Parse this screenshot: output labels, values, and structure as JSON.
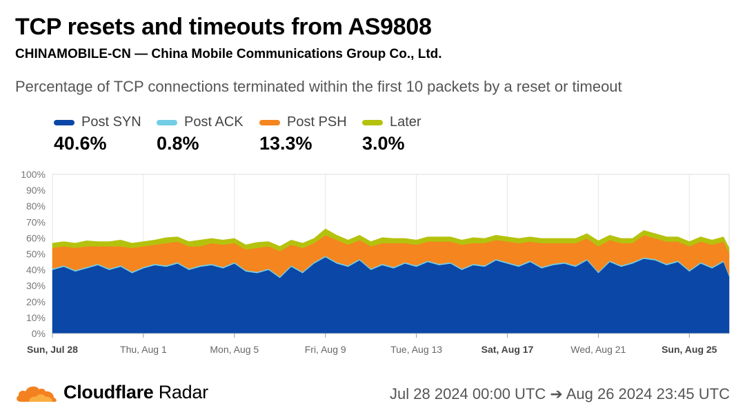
{
  "header": {
    "title": "TCP resets and timeouts from AS9808",
    "subtitle": "CHINAMOBILE-CN — China Mobile Communications Group Co., Ltd.",
    "description": "Percentage of TCP connections terminated within the first 10 packets by a reset or timeout"
  },
  "legend": [
    {
      "name": "Post SYN",
      "value": "40.6%",
      "color": "#0a47a6"
    },
    {
      "name": "Post ACK",
      "value": "0.8%",
      "color": "#73cde5"
    },
    {
      "name": "Post PSH",
      "value": "13.3%",
      "color": "#f4851f"
    },
    {
      "name": "Later",
      "value": "3.0%",
      "color": "#b5c20d"
    }
  ],
  "footer": {
    "brand_bold": "Cloudflare",
    "brand_rest": " Radar",
    "range": "Jul 28 2024 00:00 UTC ➔ Aug 26 2024 23:45 UTC"
  },
  "chart_data": {
    "type": "area",
    "stacked": true,
    "x_start": "2024-07-28",
    "x_end": "2024-08-26",
    "ylim": [
      0,
      100
    ],
    "y_ticks": [
      "0%",
      "10%",
      "20%",
      "30%",
      "40%",
      "50%",
      "60%",
      "70%",
      "80%",
      "90%",
      "100%"
    ],
    "x_ticks": [
      {
        "label": "Sun, Jul 28",
        "day": 0,
        "bold": true
      },
      {
        "label": "Thu, Aug 1",
        "day": 4,
        "bold": false
      },
      {
        "label": "Mon, Aug 5",
        "day": 8,
        "bold": false
      },
      {
        "label": "Fri, Aug 9",
        "day": 12,
        "bold": false
      },
      {
        "label": "Tue, Aug 13",
        "day": 16,
        "bold": false
      },
      {
        "label": "Sat, Aug 17",
        "day": 20,
        "bold": true
      },
      {
        "label": "Wed, Aug 21",
        "day": 24,
        "bold": false
      },
      {
        "label": "Sun, Aug 25",
        "day": 28,
        "bold": true
      }
    ],
    "x_days": [
      0,
      0.5,
      1,
      1.5,
      2,
      2.5,
      3,
      3.5,
      4,
      4.5,
      5,
      5.5,
      6,
      6.5,
      7,
      7.5,
      8,
      8.5,
      9,
      9.5,
      10,
      10.5,
      11,
      11.5,
      12,
      12.5,
      13,
      13.5,
      14,
      14.5,
      15,
      15.5,
      16,
      16.5,
      17,
      17.5,
      18,
      18.5,
      19,
      19.5,
      20,
      20.5,
      21,
      21.5,
      22,
      22.5,
      23,
      23.5,
      24,
      24.5,
      25,
      25.5,
      26,
      26.5,
      27,
      27.5,
      28,
      28.5,
      29,
      29.5,
      29.75
    ],
    "series": [
      {
        "name": "Post SYN",
        "values": [
          40,
          42,
          39,
          41,
          43,
          40,
          42,
          38,
          41,
          43,
          42,
          44,
          40,
          42,
          43,
          41,
          44,
          39,
          38,
          40,
          35,
          42,
          38,
          44,
          48,
          44,
          42,
          46,
          40,
          43,
          41,
          44,
          42,
          45,
          43,
          44,
          40,
          43,
          42,
          46,
          44,
          42,
          45,
          41,
          43,
          44,
          42,
          46,
          38,
          45,
          42,
          44,
          47,
          46,
          43,
          45,
          39,
          44,
          41,
          45,
          36
        ]
      },
      {
        "name": "Post ACK",
        "values": [
          0.8,
          0.8,
          0.8,
          0.8,
          0.8,
          0.8,
          0.8,
          0.8,
          0.8,
          0.8,
          0.8,
          0.8,
          0.8,
          0.8,
          0.8,
          0.8,
          0.8,
          0.8,
          0.8,
          0.8,
          0.8,
          0.8,
          0.8,
          0.8,
          0.8,
          0.8,
          0.8,
          0.8,
          0.8,
          0.8,
          0.8,
          0.8,
          0.8,
          0.8,
          0.8,
          0.8,
          0.8,
          0.8,
          0.8,
          0.8,
          0.8,
          0.8,
          0.8,
          0.8,
          0.8,
          0.8,
          0.8,
          0.8,
          0.8,
          0.8,
          0.8,
          0.8,
          0.8,
          0.8,
          0.8,
          0.8,
          0.8,
          0.8,
          0.8,
          0.8,
          0.8
        ]
      },
      {
        "name": "Post PSH",
        "values": [
          13,
          12,
          14,
          13,
          11,
          14,
          12,
          15,
          13,
          12,
          14,
          13,
          14,
          12,
          13,
          14,
          12,
          13,
          15,
          14,
          16,
          13,
          15,
          12,
          13,
          14,
          13,
          12,
          14,
          13,
          15,
          12,
          13,
          12,
          14,
          13,
          15,
          13,
          14,
          12,
          13,
          14,
          12,
          15,
          13,
          12,
          14,
          13,
          16,
          13,
          14,
          12,
          14,
          13,
          14,
          12,
          15,
          13,
          14,
          12,
          14
        ]
      },
      {
        "name": "Later",
        "values": [
          3,
          3,
          3,
          3.5,
          3,
          3,
          4,
          3,
          3,
          3,
          3.5,
          3,
          3,
          4,
          3,
          3,
          3,
          3,
          3.5,
          3,
          3,
          3,
          3,
          3,
          4,
          3,
          3,
          3,
          3,
          3.5,
          3,
          3,
          3,
          3,
          3,
          3,
          3,
          3.5,
          3,
          3,
          3,
          3,
          3,
          3,
          3,
          3,
          3,
          3,
          3.5,
          3,
          3,
          3,
          3,
          3,
          3,
          3,
          3,
          3,
          3,
          3,
          3
        ]
      }
    ]
  }
}
